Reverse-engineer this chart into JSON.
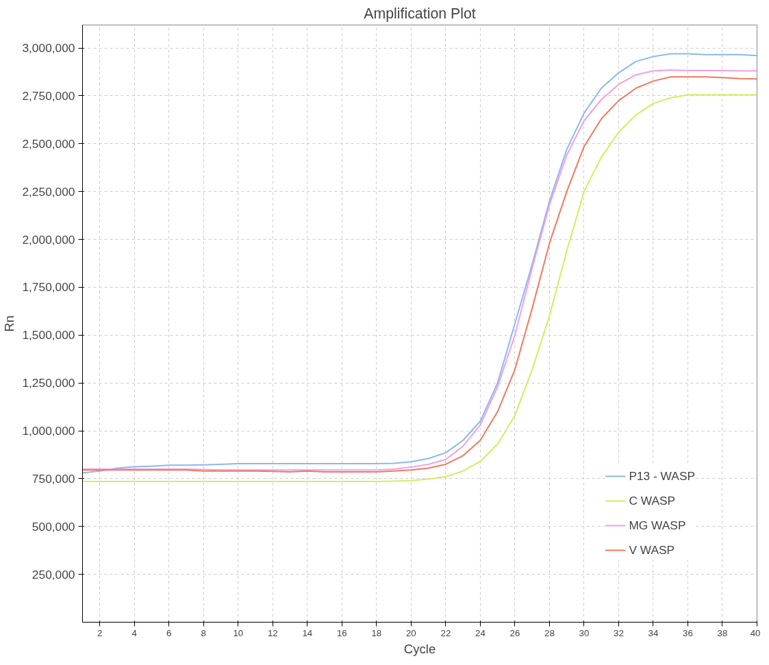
{
  "chart_data": {
    "type": "line",
    "title": "Amplification Plot",
    "xlabel": "Cycle",
    "ylabel": "Rn",
    "x": [
      1,
      2,
      3,
      4,
      5,
      6,
      7,
      8,
      9,
      10,
      11,
      12,
      13,
      14,
      15,
      16,
      17,
      18,
      19,
      20,
      21,
      22,
      23,
      24,
      25,
      26,
      27,
      28,
      29,
      30,
      31,
      32,
      33,
      34,
      35,
      36,
      37,
      38,
      39,
      40
    ],
    "series": [
      {
        "name": "P13 - WASP",
        "color": "#8ab8f0",
        "values": [
          780000,
          790000,
          805000,
          812000,
          815000,
          820000,
          820000,
          822000,
          825000,
          828000,
          828000,
          828000,
          828000,
          828000,
          828000,
          828000,
          828000,
          828000,
          830000,
          838000,
          855000,
          885000,
          950000,
          1050000,
          1250000,
          1560000,
          1870000,
          2200000,
          2470000,
          2660000,
          2790000,
          2870000,
          2930000,
          2955000,
          2970000,
          2970000,
          2965000,
          2965000,
          2965000,
          2960000
        ]
      },
      {
        "name": "C WASP",
        "color": "#cdf060",
        "values": [
          735000,
          735000,
          735000,
          735000,
          735000,
          735000,
          735000,
          735000,
          735000,
          735000,
          735000,
          735000,
          735000,
          735000,
          735000,
          735000,
          735000,
          735000,
          737000,
          740000,
          748000,
          760000,
          790000,
          840000,
          930000,
          1080000,
          1320000,
          1600000,
          1940000,
          2250000,
          2430000,
          2560000,
          2650000,
          2710000,
          2740000,
          2755000,
          2755000,
          2755000,
          2755000,
          2755000
        ]
      },
      {
        "name": "MG WASP",
        "color": "#f0a0e0",
        "values": [
          800000,
          800000,
          800000,
          800000,
          800000,
          800000,
          800000,
          798000,
          795000,
          795000,
          795000,
          795000,
          795000,
          795000,
          795000,
          795000,
          795000,
          795000,
          800000,
          810000,
          825000,
          850000,
          920000,
          1030000,
          1230000,
          1500000,
          1850000,
          2180000,
          2440000,
          2620000,
          2730000,
          2810000,
          2860000,
          2880000,
          2885000,
          2882000,
          2882000,
          2882000,
          2880000,
          2880000
        ]
      },
      {
        "name": "V WASP",
        "color": "#f07860",
        "values": [
          795000,
          795000,
          795000,
          795000,
          795000,
          795000,
          795000,
          790000,
          790000,
          790000,
          790000,
          788000,
          785000,
          790000,
          785000,
          785000,
          785000,
          785000,
          790000,
          795000,
          805000,
          825000,
          870000,
          950000,
          1100000,
          1320000,
          1640000,
          1980000,
          2250000,
          2485000,
          2630000,
          2725000,
          2790000,
          2827000,
          2849000,
          2849000,
          2849000,
          2845000,
          2840000,
          2838000
        ]
      }
    ],
    "xlim": [
      1,
      40
    ],
    "ylim": [
      0,
      3120000
    ],
    "xticks": [
      2,
      4,
      6,
      8,
      10,
      12,
      14,
      16,
      18,
      20,
      22,
      24,
      26,
      28,
      30,
      32,
      34,
      36,
      38,
      40
    ],
    "yticks": [
      {
        "value": 250000,
        "label": "250,000"
      },
      {
        "value": 500000,
        "label": "500,000"
      },
      {
        "value": 750000,
        "label": "750,000"
      },
      {
        "value": 1000000,
        "label": "1,000,000"
      },
      {
        "value": 1250000,
        "label": "1,250,000"
      },
      {
        "value": 1500000,
        "label": "1,500,000"
      },
      {
        "value": 1750000,
        "label": "1,750,000"
      },
      {
        "value": 2000000,
        "label": "2,000,000"
      },
      {
        "value": 2250000,
        "label": "2,250,000"
      },
      {
        "value": 2500000,
        "label": "2,500,000"
      },
      {
        "value": 2750000,
        "label": "2,750,000"
      },
      {
        "value": 3000000,
        "label": "3,000,000"
      }
    ],
    "grid": true,
    "legend": "bottom right",
    "line_style": "solid"
  }
}
